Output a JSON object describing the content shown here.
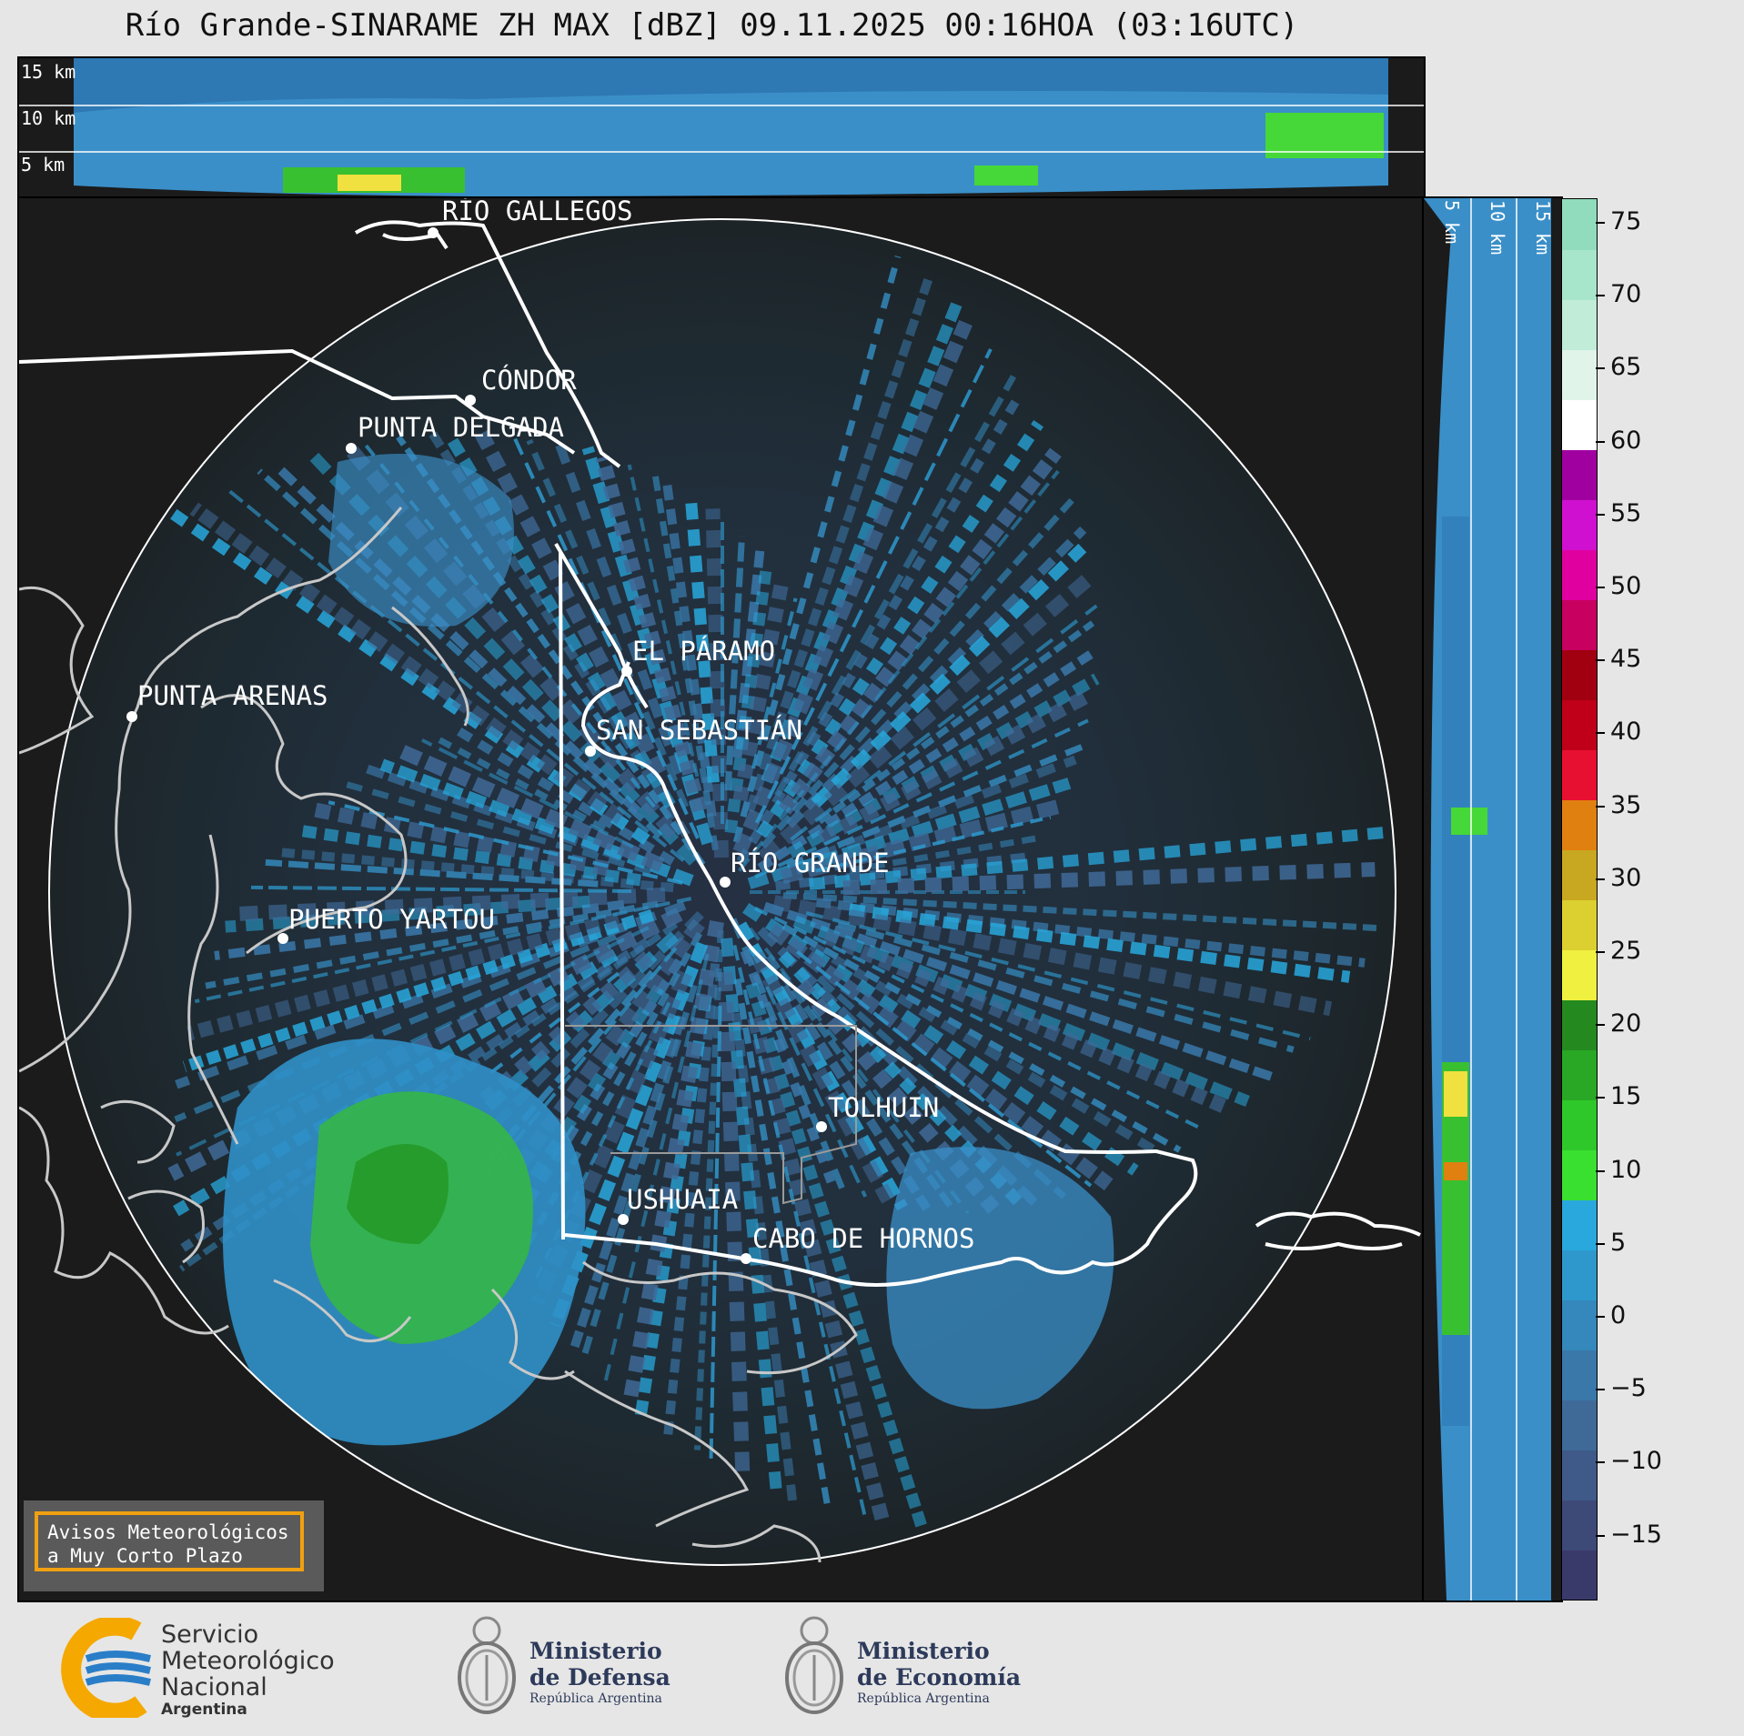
{
  "title": "Río Grande-SINARAME ZH MAX [dBZ] 09.11.2025 00:16HOA (03:16UTC)",
  "top_panel": {
    "height_labels": [
      "15 km",
      "10 km",
      "5 km"
    ]
  },
  "side_panel": {
    "height_labels": [
      "5 km",
      "10 km",
      "15 km"
    ]
  },
  "colorbar": {
    "unit": "dBZ",
    "tick_labels": [
      "75",
      "70",
      "65",
      "60",
      "55",
      "50",
      "45",
      "40",
      "35",
      "30",
      "25",
      "20",
      "15",
      "10",
      "5",
      "0",
      "−5",
      "−10",
      "−15"
    ],
    "bands": [
      "#3a3a6a",
      "#3d4a78",
      "#3f5a88",
      "#3f6a98",
      "#3a78aa",
      "#3488bb",
      "#2e98cc",
      "#28a8dd",
      "#39e030",
      "#2fc82a",
      "#28a824",
      "#248a20",
      "#f0f040",
      "#dcd030",
      "#c8a820",
      "#e08010",
      "#e81030",
      "#c00018",
      "#a00010",
      "#c80060",
      "#e000a0",
      "#d010d0",
      "#a000a0",
      "#ffffff",
      "#e0f4ea",
      "#c0ecd8",
      "#a8e6cc",
      "#90dcbc"
    ]
  },
  "cities": [
    {
      "name": "RÍO GALLEGOS"
    },
    {
      "name": "CÓNDOR"
    },
    {
      "name": "PUNTA DELGADA"
    },
    {
      "name": "EL PÁRAMO"
    },
    {
      "name": "PUNTA ARENAS"
    },
    {
      "name": "SAN SEBASTIÁN"
    },
    {
      "name": "RÍO GRANDE"
    },
    {
      "name": "PUERTO YARTOU"
    },
    {
      "name": "TOLHUIN"
    },
    {
      "name": "USHUAIA"
    },
    {
      "name": "CABO DE HORNOS"
    }
  ],
  "alert": {
    "line1": "Avisos Meteorológicos",
    "line2": "a Muy Corto Plazo"
  },
  "logos": {
    "smn": {
      "line1": "Servicio",
      "line2": "Meteorológico",
      "line3": "Nacional",
      "line4": "Argentina"
    },
    "defensa": {
      "line1": "Ministerio",
      "line2": "de Defensa",
      "line3": "República Argentina"
    },
    "economia": {
      "line1": "Ministerio",
      "line2": "de Economía",
      "line3": "República Argentina"
    }
  },
  "colors": {
    "background": "#1b1b1b",
    "coast": "#ffffff",
    "range_ring": "#ffffff",
    "alert_border": "#f0a010"
  }
}
